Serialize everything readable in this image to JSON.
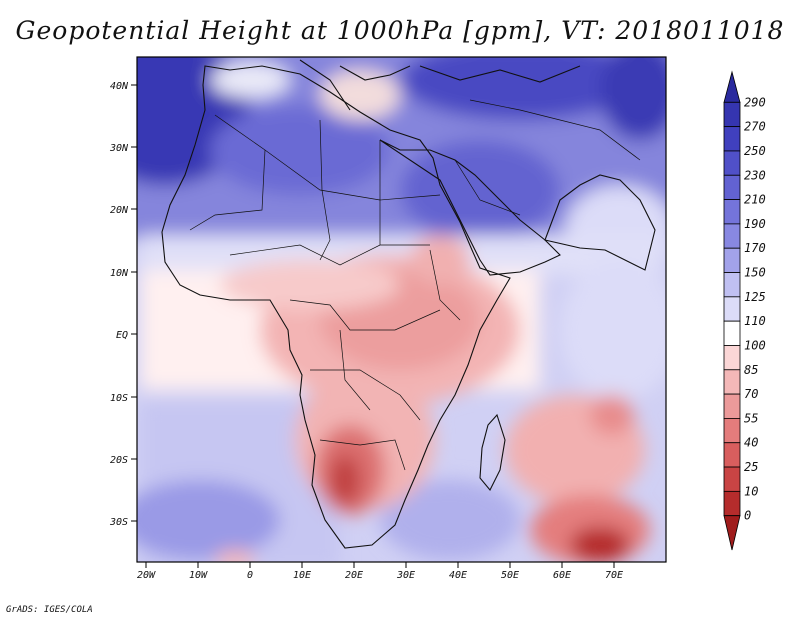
{
  "title": "Geopotential Height at 1000hPa [gpm], VT: 2018011018",
  "footer": "GrADS: IGES/COLA",
  "map": {
    "y_ticks": [
      "40N",
      "30N",
      "20N",
      "10N",
      "EQ",
      "10S",
      "20S",
      "30S"
    ],
    "x_ticks": [
      "20W",
      "10W",
      "0",
      "10E",
      "20E",
      "30E",
      "40E",
      "50E",
      "60E",
      "70E"
    ]
  },
  "colorbar": {
    "levels": [
      "290",
      "270",
      "250",
      "230",
      "210",
      "190",
      "170",
      "150",
      "125",
      "110",
      "100",
      "85",
      "70",
      "55",
      "40",
      "25",
      "10",
      "0"
    ],
    "colors": [
      "#2a2a9e",
      "#3535b0",
      "#4040be",
      "#5050c8",
      "#6262d2",
      "#7474da",
      "#8888e2",
      "#a2a2ea",
      "#c0c0f2",
      "#dcdcf8",
      "#ffffff",
      "#fbd6d6",
      "#f4b8b8",
      "#ec9a9a",
      "#e47c7c",
      "#d85e5e",
      "#c94444",
      "#b52c2c",
      "#a01c1c"
    ]
  }
}
